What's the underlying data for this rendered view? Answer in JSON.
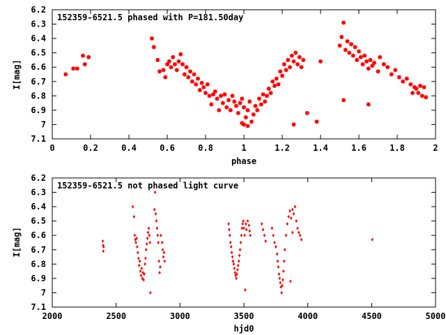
{
  "chart_data": [
    {
      "type": "scatter",
      "title": "152359-6521.5 phased with P=181.50day",
      "xlabel": "phase",
      "ylabel": "I[mag]",
      "xlim": [
        0,
        2
      ],
      "ylim": [
        7.1,
        6.2
      ],
      "y_reversed": true,
      "grid": false,
      "legend": "none",
      "x_ticks": [
        "0",
        "0.2",
        "0.4",
        "0.6",
        "0.8",
        "1",
        "1.2",
        "1.4",
        "1.6",
        "1.8",
        "2"
      ],
      "y_ticks": [
        "6.2",
        "6.3",
        "6.4",
        "6.5",
        "6.6",
        "6.7",
        "6.8",
        "6.9",
        "7",
        "7.1"
      ],
      "marker_color": "#ff0000",
      "marker": "star",
      "series": [
        {
          "values": [
            [
              0.07,
              6.65
            ],
            [
              0.11,
              6.61
            ],
            [
              0.13,
              6.61
            ],
            [
              0.16,
              6.52
            ],
            [
              0.17,
              6.58
            ],
            [
              0.19,
              6.53
            ],
            [
              0.52,
              6.4
            ],
            [
              0.53,
              6.46
            ],
            [
              0.55,
              6.55
            ],
            [
              0.56,
              6.63
            ],
            [
              0.58,
              6.62
            ],
            [
              0.59,
              6.67
            ],
            [
              0.6,
              6.58
            ],
            [
              0.61,
              6.56
            ],
            [
              0.62,
              6.6
            ],
            [
              0.63,
              6.53
            ],
            [
              0.64,
              6.58
            ],
            [
              0.65,
              6.62
            ],
            [
              0.66,
              6.56
            ],
            [
              0.67,
              6.51
            ],
            [
              0.68,
              6.58
            ],
            [
              0.69,
              6.65
            ],
            [
              0.7,
              6.6
            ],
            [
              0.71,
              6.67
            ],
            [
              0.72,
              6.63
            ],
            [
              0.73,
              6.7
            ],
            [
              0.74,
              6.65
            ],
            [
              0.75,
              6.72
            ],
            [
              0.76,
              6.68
            ],
            [
              0.77,
              6.76
            ],
            [
              0.78,
              6.71
            ],
            [
              0.79,
              6.74
            ],
            [
              0.8,
              6.78
            ],
            [
              0.81,
              6.72
            ],
            [
              0.82,
              6.8
            ],
            [
              0.83,
              6.86
            ],
            [
              0.84,
              6.79
            ],
            [
              0.85,
              6.77
            ],
            [
              0.86,
              6.82
            ],
            [
              0.87,
              6.9
            ],
            [
              0.88,
              6.8
            ],
            [
              0.89,
              6.85
            ],
            [
              0.9,
              6.79
            ],
            [
              0.91,
              6.88
            ],
            [
              0.92,
              6.83
            ],
            [
              0.93,
              6.9
            ],
            [
              0.94,
              6.8
            ],
            [
              0.95,
              6.84
            ],
            [
              0.96,
              6.87
            ],
            [
              0.97,
              6.92
            ],
            [
              0.98,
              6.85
            ],
            [
              0.99,
              6.82
            ],
            [
              1.0,
              6.88
            ],
            [
              1.01,
              6.95
            ],
            [
              1.02,
              6.9
            ],
            [
              1.03,
              6.84
            ],
            [
              1.04,
              6.98
            ],
            [
              1.05,
              6.93
            ],
            [
              1.06,
              6.87
            ],
            [
              1.07,
              6.9
            ],
            [
              1.08,
              6.82
            ],
            [
              1.09,
              6.86
            ],
            [
              1.1,
              6.79
            ],
            [
              1.11,
              6.84
            ],
            [
              1.12,
              6.8
            ],
            [
              1.13,
              6.75
            ],
            [
              1.14,
              6.78
            ],
            [
              1.15,
              6.7
            ],
            [
              1.16,
              6.73
            ],
            [
              1.17,
              6.68
            ],
            [
              1.18,
              6.72
            ],
            [
              1.19,
              6.63
            ],
            [
              1.2,
              6.66
            ],
            [
              1.21,
              6.58
            ],
            [
              1.22,
              6.62
            ],
            [
              1.23,
              6.55
            ],
            [
              1.24,
              6.6
            ],
            [
              1.25,
              6.52
            ],
            [
              1.26,
              6.56
            ],
            [
              1.27,
              6.5
            ],
            [
              1.28,
              6.58
            ],
            [
              1.29,
              6.53
            ],
            [
              1.3,
              6.6
            ],
            [
              1.31,
              6.55
            ],
            [
              1.0,
              7.0
            ],
            [
              0.99,
              6.99
            ],
            [
              1.02,
              7.01
            ],
            [
              1.26,
              7.0
            ],
            [
              1.33,
              6.92
            ],
            [
              1.38,
              6.98
            ],
            [
              1.4,
              6.56
            ],
            [
              1.52,
              6.83
            ],
            [
              1.65,
              6.86
            ],
            [
              1.5,
              6.45
            ],
            [
              1.51,
              6.39
            ],
            [
              1.52,
              6.29
            ],
            [
              1.53,
              6.48
            ],
            [
              1.54,
              6.42
            ],
            [
              1.55,
              6.5
            ],
            [
              1.56,
              6.44
            ],
            [
              1.57,
              6.52
            ],
            [
              1.58,
              6.46
            ],
            [
              1.59,
              6.55
            ],
            [
              1.6,
              6.49
            ],
            [
              1.61,
              6.53
            ],
            [
              1.62,
              6.58
            ],
            [
              1.63,
              6.52
            ],
            [
              1.64,
              6.56
            ],
            [
              1.65,
              6.61
            ],
            [
              1.66,
              6.55
            ],
            [
              1.67,
              6.59
            ],
            [
              1.68,
              6.57
            ],
            [
              1.7,
              6.63
            ],
            [
              1.71,
              6.53
            ],
            [
              1.73,
              6.58
            ],
            [
              1.75,
              6.6
            ],
            [
              1.77,
              6.65
            ],
            [
              1.79,
              6.62
            ],
            [
              1.81,
              6.67
            ],
            [
              1.83,
              6.7
            ],
            [
              1.85,
              6.68
            ],
            [
              1.87,
              6.72
            ],
            [
              1.88,
              6.78
            ],
            [
              1.89,
              6.74
            ],
            [
              1.9,
              6.75
            ],
            [
              1.91,
              6.78
            ],
            [
              1.92,
              6.73
            ],
            [
              1.93,
              6.8
            ],
            [
              1.94,
              6.74
            ],
            [
              1.95,
              6.81
            ]
          ]
        }
      ]
    },
    {
      "type": "scatter",
      "title": "152359-6521.5 not phased light curve",
      "xlabel": "hjd0",
      "ylabel": "I[mag]",
      "xlim": [
        2000,
        5000
      ],
      "ylim": [
        7.1,
        6.2
      ],
      "y_reversed": true,
      "grid": false,
      "legend": "none",
      "x_ticks": [
        "2000",
        "2500",
        "3000",
        "3500",
        "4000",
        "4500",
        "5000"
      ],
      "y_ticks": [
        "6.2",
        "6.3",
        "6.4",
        "6.5",
        "6.6",
        "6.7",
        "6.8",
        "6.9",
        "7",
        "7.1"
      ],
      "marker_color": "#ff0000",
      "marker": "diamond",
      "series": [
        {
          "values": [
            [
              2395,
              6.64
            ],
            [
              2398,
              6.67
            ],
            [
              2400,
              6.71
            ],
            [
              2402,
              6.68
            ],
            [
              2630,
              6.4
            ],
            [
              2640,
              6.47
            ],
            [
              2645,
              6.6
            ],
            [
              2650,
              6.63
            ],
            [
              2655,
              6.65
            ],
            [
              2660,
              6.62
            ],
            [
              2665,
              6.68
            ],
            [
              2670,
              6.72
            ],
            [
              2675,
              6.76
            ],
            [
              2680,
              6.81
            ],
            [
              2685,
              6.78
            ],
            [
              2690,
              6.85
            ],
            [
              2695,
              6.88
            ],
            [
              2700,
              6.83
            ],
            [
              2705,
              6.9
            ],
            [
              2710,
              6.86
            ],
            [
              2715,
              6.91
            ],
            [
              2720,
              6.87
            ],
            [
              2725,
              6.8
            ],
            [
              2730,
              6.76
            ],
            [
              2735,
              6.7
            ],
            [
              2740,
              6.66
            ],
            [
              2745,
              6.62
            ],
            [
              2750,
              6.58
            ],
            [
              2755,
              6.55
            ],
            [
              2760,
              6.6
            ],
            [
              2765,
              6.65
            ],
            [
              2768,
              7.0
            ],
            [
              2800,
              6.42
            ],
            [
              2805,
              6.3
            ],
            [
              2810,
              6.45
            ],
            [
              2815,
              6.5
            ],
            [
              2820,
              6.55
            ],
            [
              2825,
              6.6
            ],
            [
              2830,
              6.65
            ],
            [
              2835,
              6.78
            ],
            [
              2840,
              6.86
            ],
            [
              2845,
              6.82
            ],
            [
              2850,
              6.6
            ],
            [
              2860,
              6.65
            ],
            [
              2865,
              6.7
            ],
            [
              2870,
              6.75
            ],
            [
              2875,
              6.72
            ],
            [
              2880,
              6.78
            ],
            [
              3380,
              6.52
            ],
            [
              3385,
              6.56
            ],
            [
              3390,
              6.6
            ],
            [
              3395,
              6.65
            ],
            [
              3400,
              6.68
            ],
            [
              3405,
              6.72
            ],
            [
              3410,
              6.75
            ],
            [
              3415,
              6.78
            ],
            [
              3420,
              6.8
            ],
            [
              3425,
              6.83
            ],
            [
              3430,
              6.86
            ],
            [
              3435,
              6.88
            ],
            [
              3440,
              6.9
            ],
            [
              3445,
              6.87
            ],
            [
              3450,
              6.84
            ],
            [
              3455,
              6.81
            ],
            [
              3460,
              6.78
            ],
            [
              3465,
              6.74
            ],
            [
              3470,
              6.7
            ],
            [
              3475,
              6.65
            ],
            [
              3480,
              6.6
            ],
            [
              3485,
              6.55
            ],
            [
              3490,
              6.52
            ],
            [
              3495,
              6.5
            ],
            [
              3500,
              6.55
            ],
            [
              3505,
              6.6
            ],
            [
              3510,
              6.98
            ],
            [
              3515,
              6.52
            ],
            [
              3520,
              6.56
            ],
            [
              3530,
              6.5
            ],
            [
              3540,
              6.53
            ],
            [
              3545,
              6.57
            ],
            [
              3550,
              6.6
            ],
            [
              3640,
              6.52
            ],
            [
              3650,
              6.56
            ],
            [
              3660,
              6.6
            ],
            [
              3670,
              6.64
            ],
            [
              3720,
              6.55
            ],
            [
              3730,
              6.6
            ],
            [
              3740,
              6.65
            ],
            [
              3750,
              6.68
            ],
            [
              3760,
              6.73
            ],
            [
              3765,
              6.78
            ],
            [
              3770,
              6.82
            ],
            [
              3775,
              6.87
            ],
            [
              3780,
              6.9
            ],
            [
              3785,
              6.93
            ],
            [
              3790,
              6.96
            ],
            [
              3795,
              7.0
            ],
            [
              3800,
              6.95
            ],
            [
              3805,
              6.91
            ],
            [
              3810,
              6.85
            ],
            [
              3815,
              6.78
            ],
            [
              3820,
              6.7
            ],
            [
              3830,
              6.6
            ],
            [
              3840,
              6.52
            ],
            [
              3850,
              6.47
            ],
            [
              3860,
              6.43
            ],
            [
              3870,
              6.48
            ],
            [
              3880,
              6.42
            ],
            [
              3890,
              6.45
            ],
            [
              3900,
              6.4
            ],
            [
              3910,
              6.5
            ],
            [
              3920,
              6.55
            ],
            [
              3930,
              6.58
            ],
            [
              3940,
              6.6
            ],
            [
              3950,
              6.63
            ],
            [
              3865,
              6.92
            ],
            [
              3880,
              6.58
            ],
            [
              4505,
              6.63
            ]
          ]
        }
      ]
    }
  ]
}
